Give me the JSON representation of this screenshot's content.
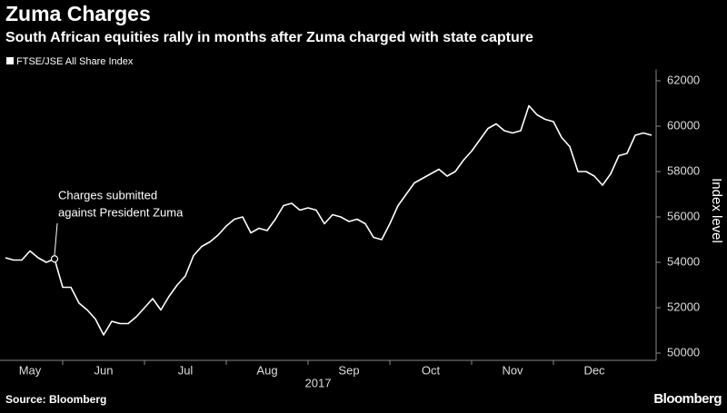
{
  "chart_data": {
    "type": "line",
    "title": "Zuma Charges",
    "subtitle": "South African equities rally in months after Zuma charged with state capture",
    "source": "Source: Bloomberg",
    "brand": "Bloomberg",
    "xlabel": "2017",
    "ylabel": "Index level",
    "annotation": [
      "Charges submitted",
      "against President Zuma"
    ],
    "categories": [
      null,
      null,
      null,
      "May",
      null,
      null,
      null,
      null,
      null,
      null,
      null,
      null,
      "Jun",
      null,
      null,
      null,
      null,
      null,
      null,
      null,
      null,
      null,
      "Jul",
      null,
      null,
      null,
      null,
      null,
      null,
      null,
      null,
      null,
      "Aug",
      null,
      null,
      null,
      null,
      null,
      null,
      null,
      null,
      null,
      "Sep",
      null,
      null,
      null,
      null,
      null,
      null,
      null,
      null,
      null,
      "Oct",
      null,
      null,
      null,
      null,
      null,
      null,
      null,
      null,
      null,
      "Nov",
      null,
      null,
      null,
      null,
      null,
      null,
      null,
      null,
      null,
      "Dec",
      null,
      null,
      null,
      null,
      null,
      null,
      null
    ],
    "series": [
      {
        "name": "FTSE/JSE All Share Index",
        "color": "#ffffff",
        "values": [
          54200,
          54100,
          54100,
          54500,
          54200,
          54000,
          54150,
          52900,
          52900,
          52200,
          51900,
          51500,
          50800,
          51400,
          51300,
          51300,
          51600,
          52000,
          52400,
          51900,
          52500,
          53000,
          53400,
          54300,
          54700,
          54900,
          55200,
          55600,
          55900,
          56000,
          55300,
          55500,
          55400,
          55900,
          56500,
          56600,
          56300,
          56400,
          56300,
          55700,
          56100,
          56000,
          55800,
          55900,
          55700,
          55100,
          55000,
          55700,
          56500,
          57000,
          57500,
          57700,
          57900,
          58100,
          57800,
          58000,
          58500,
          58900,
          59400,
          59900,
          60100,
          59800,
          59700,
          59800,
          60900,
          60500,
          60300,
          60200,
          59500,
          59100,
          58000,
          58000,
          57800,
          57400,
          57900,
          58700,
          58800,
          59600,
          59700,
          59600
        ]
      }
    ],
    "ylim": [
      49800,
      62500
    ],
    "yticks": [
      50000,
      52000,
      54000,
      56000,
      58000,
      60000,
      62000
    ],
    "y_axis_side": "right",
    "grid": false
  }
}
